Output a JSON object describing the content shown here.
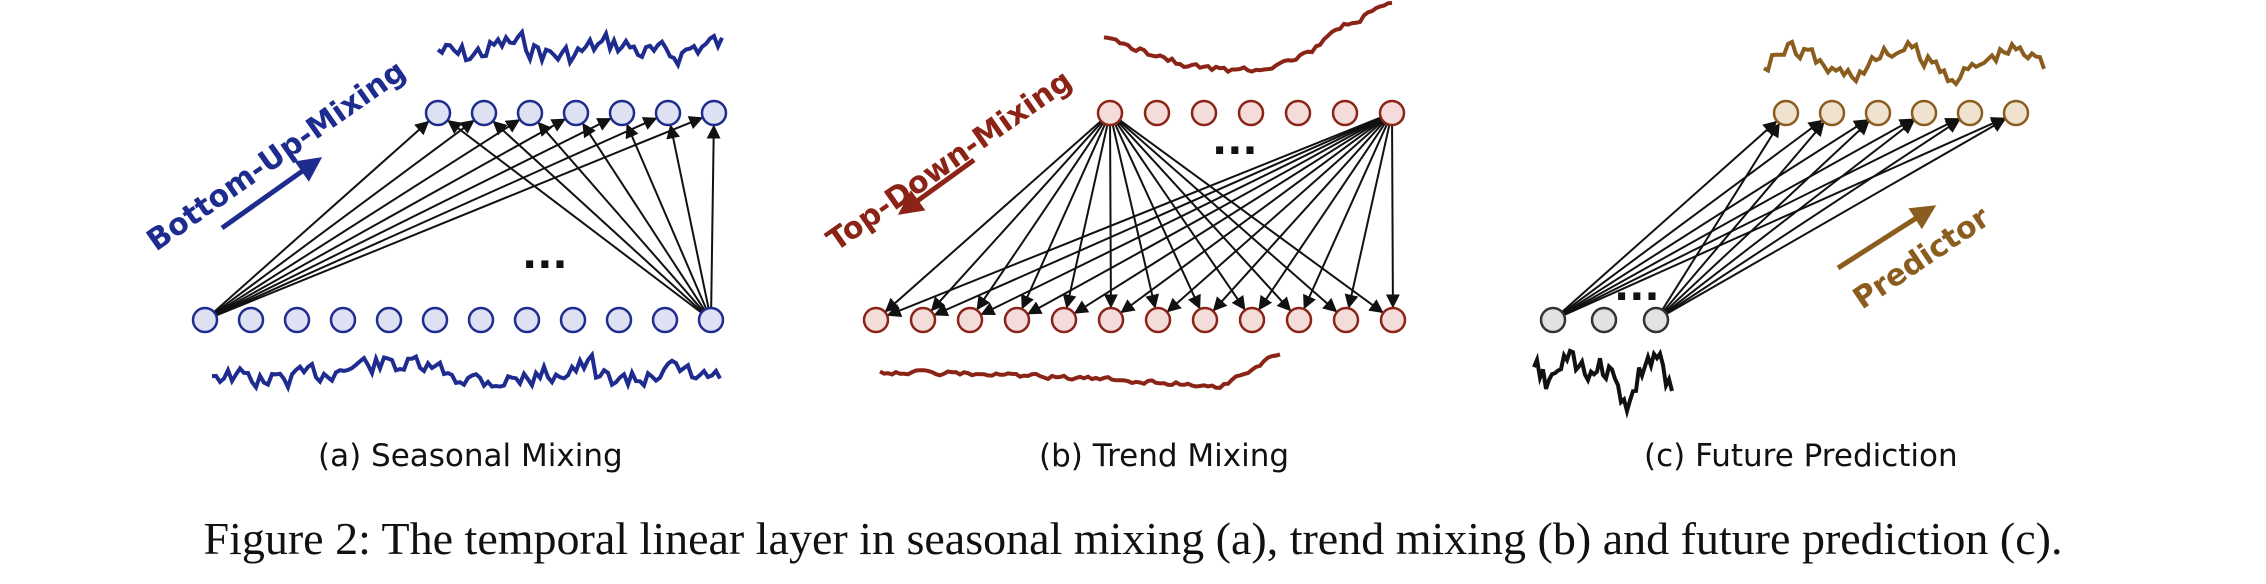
{
  "colors": {
    "seasonal": "#1f2c8f",
    "seasonal_fill": "#dde1f2",
    "trend": "#8b2416",
    "trend_fill": "#f3dcda",
    "predictor": "#8a5c1e",
    "predictor_fill": "#efe3cf",
    "input_gray": "#333333",
    "input_gray_fill": "#e2e2e2"
  },
  "panels": {
    "a": {
      "label": "(a) Seasonal Mixing",
      "arrow_label": "Bottom-Up-Mixing",
      "ellipsis": "..."
    },
    "b": {
      "label": "(b) Trend Mixing",
      "arrow_label": "Top-Down-Mixing",
      "ellipsis": "..."
    },
    "c": {
      "label": "(c) Future Prediction",
      "arrow_label": "Predictor",
      "ellipsis": "..."
    }
  },
  "caption": "Figure 2: The temporal linear layer in seasonal mixing (a), trend mixing (b) and future prediction (c)."
}
